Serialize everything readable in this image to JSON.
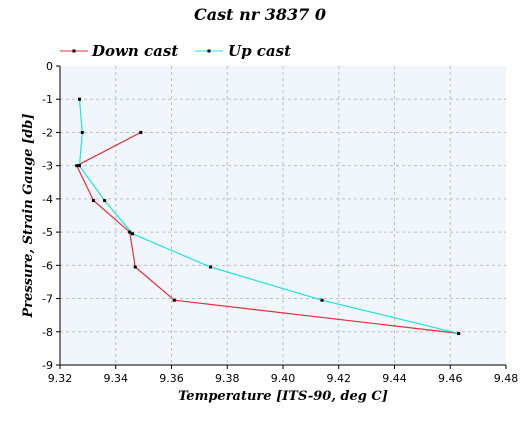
{
  "chart_data": {
    "type": "line",
    "title": "Cast nr 3837 0",
    "xlabel": "Temperature [ITS-90, deg C]",
    "ylabel": "Pressure, Strain Gauge [db]",
    "xlim": [
      9.32,
      9.48
    ],
    "ylim": [
      -9,
      0
    ],
    "xticks": [
      "9.32",
      "9.34",
      "9.36",
      "9.38",
      "9.40",
      "9.42",
      "9.44",
      "9.46",
      "9.48"
    ],
    "yticks": [
      "0",
      "-1",
      "-2",
      "-3",
      "-4",
      "-5",
      "-6",
      "-7",
      "-8",
      "-9"
    ],
    "grid": true,
    "legend_position": "top-left",
    "background_color": "#f0f6fc",
    "series": [
      {
        "name": "Down cast",
        "color": "#e0303a",
        "points": [
          [
            9.349,
            -2.0
          ],
          [
            9.326,
            -3.0
          ],
          [
            9.332,
            -4.05
          ],
          [
            9.345,
            -5.0
          ],
          [
            9.347,
            -6.05
          ],
          [
            9.361,
            -7.05
          ],
          [
            9.463,
            -8.05
          ]
        ]
      },
      {
        "name": "Up cast",
        "color": "#1fe0e6",
        "points": [
          [
            9.327,
            -1.0
          ],
          [
            9.328,
            -2.0
          ],
          [
            9.327,
            -3.0
          ],
          [
            9.336,
            -4.05
          ],
          [
            9.346,
            -5.05
          ],
          [
            9.374,
            -6.05
          ],
          [
            9.414,
            -7.05
          ],
          [
            9.463,
            -8.05
          ]
        ]
      }
    ]
  }
}
